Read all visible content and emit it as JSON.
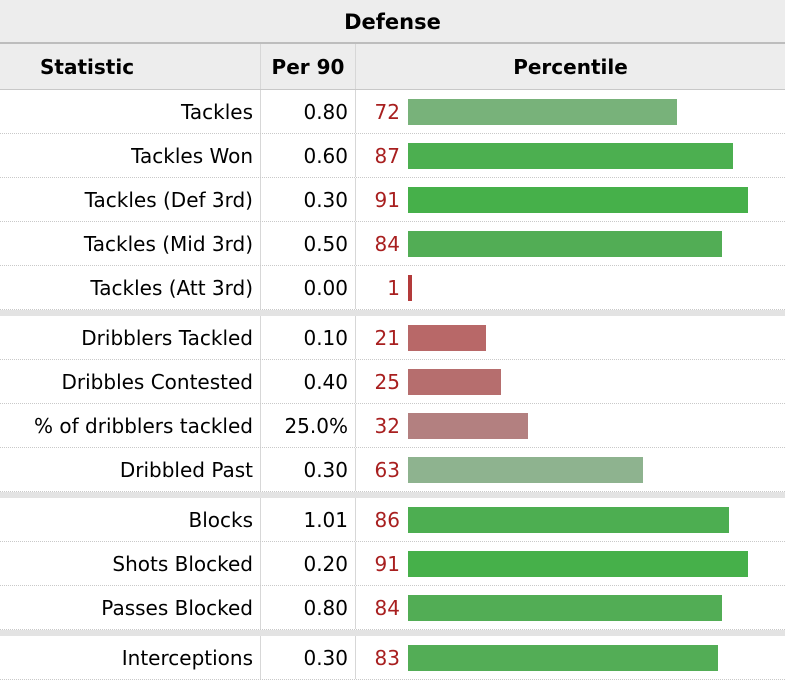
{
  "title": "Defense",
  "columns": {
    "statistic": "Statistic",
    "per90": "Per 90",
    "percentile": "Percentile"
  },
  "groups": [
    [
      {
        "stat": "Tackles",
        "per90": "0.80",
        "pct": 72,
        "color": "#78b27a"
      },
      {
        "stat": "Tackles Won",
        "per90": "0.60",
        "pct": 87,
        "color": "#4caf50"
      },
      {
        "stat": "Tackles (Def 3rd)",
        "per90": "0.30",
        "pct": 91,
        "color": "#46b04a"
      },
      {
        "stat": "Tackles (Mid 3rd)",
        "per90": "0.50",
        "pct": 84,
        "color": "#52ad55"
      },
      {
        "stat": "Tackles (Att 3rd)",
        "per90": "0.00",
        "pct": 1,
        "color": "#b33a3a"
      }
    ],
    [
      {
        "stat": "Dribblers Tackled",
        "per90": "0.10",
        "pct": 21,
        "color": "#b86868"
      },
      {
        "stat": "Dribbles Contested",
        "per90": "0.40",
        "pct": 25,
        "color": "#b66e6e"
      },
      {
        "stat": "% of dribblers tackled",
        "per90": "25.0%",
        "pct": 32,
        "color": "#b38080"
      },
      {
        "stat": "Dribbled Past",
        "per90": "0.30",
        "pct": 63,
        "color": "#8eb38f"
      }
    ],
    [
      {
        "stat": "Blocks",
        "per90": "1.01",
        "pct": 86,
        "color": "#4dae51"
      },
      {
        "stat": "Shots Blocked",
        "per90": "0.20",
        "pct": 91,
        "color": "#46b04a"
      },
      {
        "stat": "Passes Blocked",
        "per90": "0.80",
        "pct": 84,
        "color": "#52ad55"
      }
    ],
    [
      {
        "stat": "Interceptions",
        "per90": "0.30",
        "pct": 83,
        "color": "#53ad56"
      }
    ]
  ]
}
